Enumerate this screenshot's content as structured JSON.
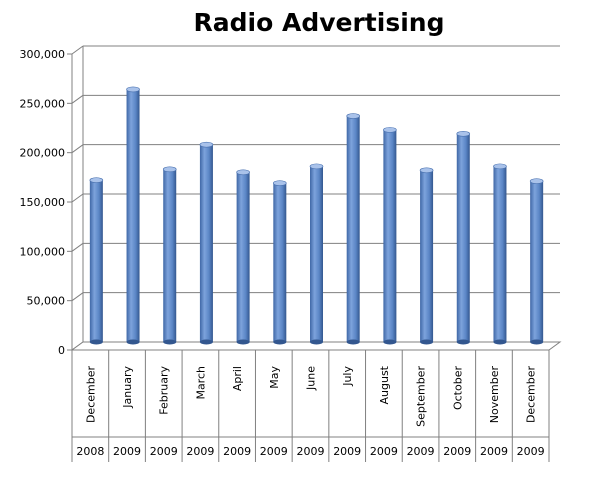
{
  "chart_data": {
    "type": "bar",
    "title": "Radio Advertising",
    "xlabel": "",
    "ylabel": "",
    "ylim": [
      0,
      300000
    ],
    "yticks": [
      "0",
      "50,000",
      "100,000",
      "150,000",
      "200,000",
      "250,000",
      "300,000"
    ],
    "grid": true,
    "legend": "none",
    "categories": [
      {
        "month": "December",
        "year": "2008"
      },
      {
        "month": "January",
        "year": "2009"
      },
      {
        "month": "February",
        "year": "2009"
      },
      {
        "month": "March",
        "year": "2009"
      },
      {
        "month": "April",
        "year": "2009"
      },
      {
        "month": "May",
        "year": "2009"
      },
      {
        "month": "June",
        "year": "2009"
      },
      {
        "month": "July",
        "year": "2009"
      },
      {
        "month": "August",
        "year": "2009"
      },
      {
        "month": "September",
        "year": "2009"
      },
      {
        "month": "October",
        "year": "2009"
      },
      {
        "month": "November",
        "year": "2009"
      },
      {
        "month": "December",
        "year": "2009"
      }
    ],
    "values": [
      164000,
      256000,
      175000,
      200000,
      172000,
      161000,
      178000,
      229000,
      215000,
      174000,
      211000,
      178000,
      163000
    ],
    "bar_color": "#5b86c6"
  }
}
